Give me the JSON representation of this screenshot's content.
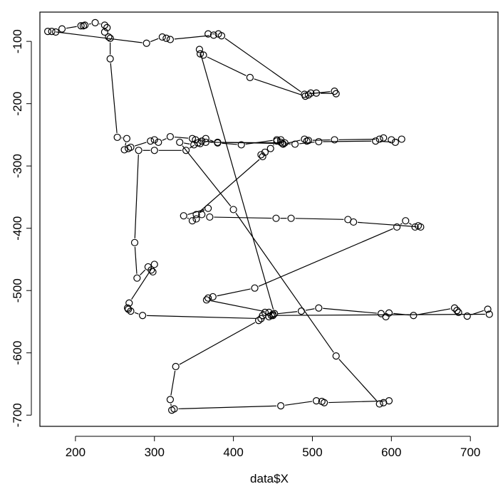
{
  "chart_data": {
    "type": "line",
    "plot_type": "b",
    "title": "",
    "xlabel": "data$X",
    "ylabel": "",
    "xlim": [
      155,
      735
    ],
    "ylim": [
      -718,
      -53
    ],
    "x_ticks": [
      200,
      300,
      400,
      500,
      600,
      700
    ],
    "y_ticks": [
      -100,
      -200,
      -300,
      -400,
      -500,
      -600,
      -700
    ],
    "x_tick_labels": [
      "200",
      "300",
      "400",
      "500",
      "600",
      "700"
    ],
    "y_tick_labels": [
      "-100",
      "-200",
      "-300",
      "-400",
      "-500",
      "-600",
      "-700"
    ],
    "grid": false,
    "legend": "none",
    "series": [
      {
        "points": [
          [
            165,
            -84
          ],
          [
            175,
            -85
          ],
          [
            183,
            -80
          ],
          [
            207,
            -75
          ],
          [
            210,
            -75
          ],
          [
            212,
            -74
          ],
          [
            225,
            -70
          ],
          [
            237,
            -74
          ],
          [
            240,
            -78
          ],
          [
            237,
            -85
          ],
          [
            242,
            -93
          ],
          [
            244,
            -95
          ],
          [
            244,
            -128
          ],
          [
            253,
            -254
          ],
          [
            265,
            -256
          ],
          [
            262,
            -274
          ],
          [
            267,
            -272
          ],
          [
            270,
            -270
          ],
          [
            295,
            -260
          ],
          [
            300,
            -258
          ],
          [
            305,
            -262
          ],
          [
            320,
            -253
          ],
          [
            348,
            -256
          ],
          [
            352,
            -258
          ],
          [
            365,
            -256
          ],
          [
            380,
            -263
          ],
          [
            410,
            -266
          ],
          [
            455,
            -258
          ],
          [
            460,
            -262
          ],
          [
            463,
            -265
          ],
          [
            490,
            -257
          ],
          [
            493,
            -260
          ],
          [
            495,
            -259
          ],
          [
            528,
            -258
          ],
          [
            585,
            -257
          ],
          [
            590,
            -255
          ],
          [
            600,
            -258
          ],
          [
            613,
            -257
          ],
          [
            605,
            -262
          ],
          [
            580,
            -260
          ],
          [
            508,
            -261
          ],
          [
            478,
            -265
          ],
          [
            462,
            -264
          ],
          [
            380,
            -262
          ],
          [
            360,
            -260
          ],
          [
            355,
            -263
          ],
          [
            340,
            -275
          ],
          [
            300,
            -275
          ],
          [
            280,
            -275
          ],
          [
            275,
            -423
          ],
          [
            278,
            -480
          ],
          [
            292,
            -462
          ],
          [
            296,
            -467
          ],
          [
            298,
            -470
          ],
          [
            300,
            -458
          ],
          [
            268,
            -520
          ],
          [
            266,
            -528
          ],
          [
            267,
            -530
          ],
          [
            270,
            -533
          ],
          [
            285,
            -540
          ],
          [
            435,
            -545
          ],
          [
            437,
            -540
          ],
          [
            440,
            -535
          ],
          [
            450,
            -538
          ],
          [
            486,
            -533
          ],
          [
            508,
            -528
          ],
          [
            587,
            -537
          ],
          [
            593,
            -542
          ],
          [
            597,
            -536
          ],
          [
            628,
            -540
          ],
          [
            680,
            -528
          ],
          [
            683,
            -532
          ],
          [
            685,
            -535
          ],
          [
            696,
            -541
          ],
          [
            722,
            -530
          ],
          [
            724,
            -538
          ],
          [
            448,
            -540
          ],
          [
            445,
            -535
          ],
          [
            366,
            -515
          ],
          [
            368,
            -512
          ],
          [
            374,
            -510
          ],
          [
            427,
            -496
          ],
          [
            607,
            -398
          ],
          [
            618,
            -388
          ],
          [
            630,
            -398
          ],
          [
            634,
            -396
          ],
          [
            637,
            -398
          ],
          [
            552,
            -390
          ],
          [
            545,
            -386
          ],
          [
            473,
            -384
          ],
          [
            454,
            -384
          ],
          [
            370,
            -382
          ],
          [
            360,
            -378
          ],
          [
            353,
            -385
          ],
          [
            348,
            -388
          ],
          [
            337,
            -380
          ],
          [
            368,
            -368
          ],
          [
            353,
            -378
          ],
          [
            437,
            -285
          ],
          [
            435,
            -282
          ],
          [
            440,
            -278
          ],
          [
            447,
            -272
          ],
          [
            455,
            -260
          ],
          [
            460,
            -258
          ],
          [
            465,
            -263
          ],
          [
            365,
            -262
          ],
          [
            358,
            -264
          ],
          [
            350,
            -266
          ],
          [
            332,
            -262
          ],
          [
            400,
            -370
          ],
          [
            530,
            -605
          ],
          [
            585,
            -682
          ],
          [
            590,
            -680
          ],
          [
            597,
            -677
          ],
          [
            515,
            -680
          ],
          [
            512,
            -678
          ],
          [
            505,
            -677
          ],
          [
            460,
            -685
          ],
          [
            325,
            -690
          ],
          [
            322,
            -692
          ],
          [
            320,
            -675
          ],
          [
            327,
            -622
          ],
          [
            432,
            -548
          ],
          [
            445,
            -542
          ],
          [
            450,
            -540
          ],
          [
            452,
            -537
          ],
          [
            357,
            -113
          ],
          [
            358,
            -120
          ],
          [
            362,
            -122
          ],
          [
            421,
            -158
          ],
          [
            491,
            -188
          ],
          [
            495,
            -186
          ],
          [
            498,
            -183
          ],
          [
            505,
            -183
          ],
          [
            530,
            -184
          ],
          [
            528,
            -180
          ],
          [
            490,
            -185
          ],
          [
            385,
            -91
          ],
          [
            381,
            -88
          ],
          [
            368,
            -88
          ],
          [
            375,
            -90
          ],
          [
            320,
            -97
          ],
          [
            315,
            -95
          ],
          [
            310,
            -93
          ],
          [
            290,
            -103
          ],
          [
            170,
            -84
          ]
        ]
      }
    ]
  }
}
